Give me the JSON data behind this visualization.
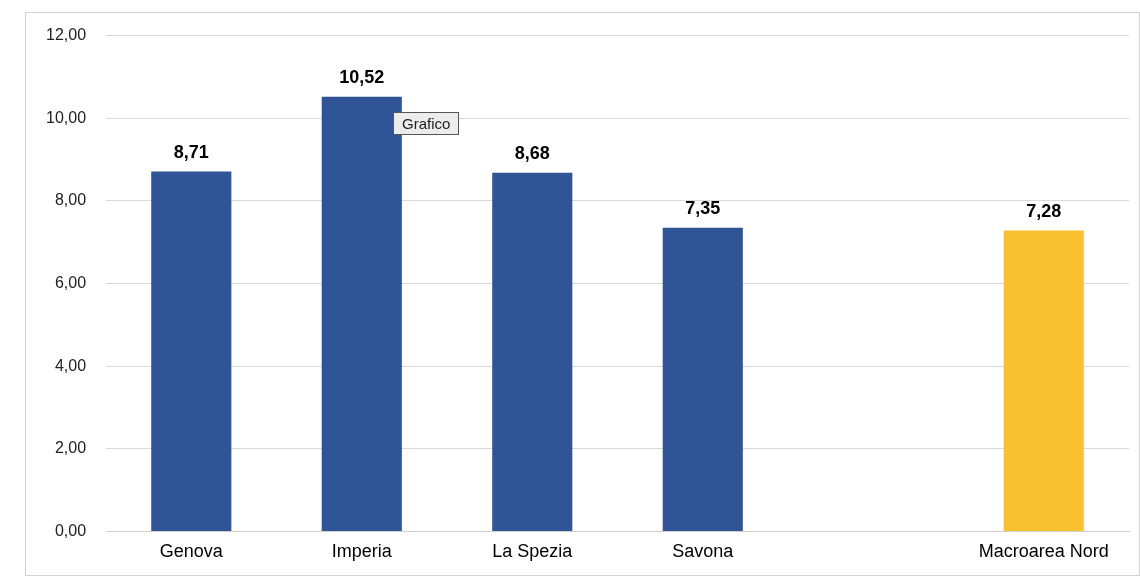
{
  "chart_data": {
    "type": "bar",
    "categories": [
      "Genova",
      "Imperia",
      "La Spezia",
      "Savona",
      null,
      "Macroarea Nord"
    ],
    "values": [
      8.71,
      10.52,
      8.68,
      7.35,
      null,
      7.28
    ],
    "colors": [
      "#2f5597",
      "#2f5597",
      "#2f5597",
      "#2f5597",
      "#2f5597",
      "#f9c130"
    ],
    "value_labels": [
      "8,71",
      "10,52",
      "8,68",
      "7,35",
      null,
      "7,28"
    ],
    "ylim": [
      0,
      12
    ],
    "yticks": [
      {
        "value": 0,
        "label": "0,00"
      },
      {
        "value": 2,
        "label": "2,00"
      },
      {
        "value": 4,
        "label": "4,00"
      },
      {
        "value": 6,
        "label": "6,00"
      },
      {
        "value": 8,
        "label": "8,00"
      },
      {
        "value": 10,
        "label": "10,00"
      },
      {
        "value": 12,
        "label": "12,00"
      }
    ],
    "grid": "y",
    "legend": false,
    "annotations": [
      "Grafico"
    ]
  }
}
